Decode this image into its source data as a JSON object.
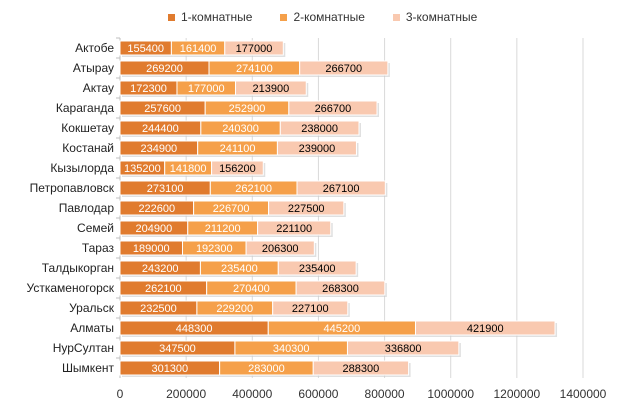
{
  "chart_data": {
    "type": "bar",
    "orientation": "horizontal",
    "stacked": true,
    "categories": [
      "Актобе",
      "Атырау",
      "Актау",
      "Караганда",
      "Кокшетау",
      "Костанай",
      "Кызылорда",
      "Петропавловск",
      "Павлодар",
      "Семей",
      "Тараз",
      "Талдыкорган",
      "Усткаменогорск",
      "Уральск",
      "Алматы",
      "НурСултан",
      "Шымкент"
    ],
    "series": [
      {
        "name": "1-комнатные",
        "color": "#e07b2e",
        "label_color": "#ffffff",
        "values": [
          155400,
          269200,
          172300,
          257600,
          244400,
          234900,
          135200,
          273100,
          222600,
          204900,
          189000,
          243200,
          262100,
          232500,
          448300,
          347500,
          301300
        ]
      },
      {
        "name": "2-комнатные",
        "color": "#f5a04a",
        "label_color": "#ffffff",
        "values": [
          161400,
          274100,
          177000,
          252900,
          240300,
          241100,
          141800,
          262100,
          226700,
          211200,
          192300,
          235400,
          270400,
          229200,
          445200,
          340300,
          283000
        ]
      },
      {
        "name": "3-комнатные",
        "color": "#f9c9b0",
        "label_color": "#000000",
        "values": [
          177000,
          266700,
          213900,
          266700,
          238000,
          239000,
          156200,
          267100,
          227500,
          221100,
          206300,
          235400,
          268300,
          227100,
          421900,
          336800,
          288300
        ]
      }
    ],
    "xlim": [
      0,
      1400000
    ],
    "x_ticks": [
      0,
      200000,
      400000,
      600000,
      800000,
      1000000,
      1200000,
      1400000
    ],
    "gridlines": true,
    "legend_position": "top"
  }
}
